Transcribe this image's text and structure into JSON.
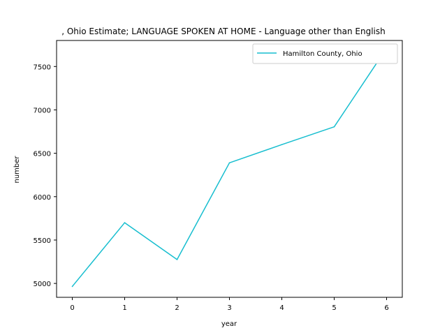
{
  "chart_data": {
    "type": "line",
    "title": ", Ohio Estimate; LANGUAGE SPOKEN AT HOME - Language other than English",
    "xlabel": "year",
    "ylabel": "number",
    "x": [
      0,
      1,
      2,
      3,
      4,
      5,
      6
    ],
    "xticks": [
      "0",
      "1",
      "2",
      "3",
      "4",
      "5",
      "6"
    ],
    "yticks": [
      "5000",
      "5500",
      "6000",
      "6500",
      "7000",
      "7500"
    ],
    "xlim": [
      -0.3,
      6.3
    ],
    "ylim": [
      4840,
      7800
    ],
    "series": [
      {
        "name": "Hamilton County, Ohio",
        "color": "#17becf",
        "values": [
          4965,
          5700,
          5275,
          6390,
          6600,
          6805,
          7710
        ]
      }
    ],
    "legend": "top-right",
    "grid": false
  }
}
